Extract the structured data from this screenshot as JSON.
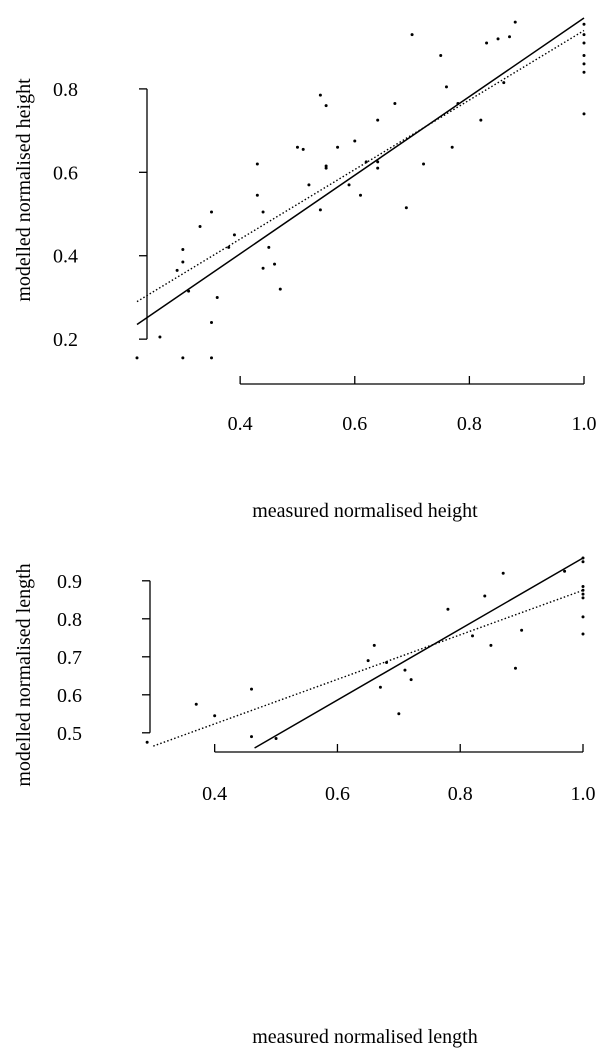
{
  "chart_data": [
    {
      "type": "scatter",
      "xlabel": "measured normalised height",
      "ylabel": "modelled normalised height",
      "xlim": [
        0.22,
        1.0
      ],
      "ylim": [
        0.15,
        0.97
      ],
      "xticks": [
        0.4,
        0.6,
        0.8,
        1.0
      ],
      "xtick_labels": [
        "0.4",
        "0.6",
        "0.8",
        "1.0"
      ],
      "yticks": [
        0.2,
        0.4,
        0.6,
        0.8
      ],
      "ytick_labels": [
        "0.2",
        "0.4",
        "0.6",
        "0.8"
      ],
      "x_axis_span": [
        0.4,
        1.0
      ],
      "y_axis_span": [
        0.2,
        0.8
      ],
      "points": [
        [
          0.22,
          0.155
        ],
        [
          0.26,
          0.205
        ],
        [
          0.3,
          0.155
        ],
        [
          0.35,
          0.155
        ],
        [
          0.29,
          0.365
        ],
        [
          0.3,
          0.415
        ],
        [
          0.3,
          0.385
        ],
        [
          0.31,
          0.315
        ],
        [
          0.33,
          0.47
        ],
        [
          0.35,
          0.505
        ],
        [
          0.35,
          0.24
        ],
        [
          0.36,
          0.3
        ],
        [
          0.38,
          0.42
        ],
        [
          0.39,
          0.45
        ],
        [
          0.43,
          0.62
        ],
        [
          0.43,
          0.545
        ],
        [
          0.44,
          0.37
        ],
        [
          0.44,
          0.505
        ],
        [
          0.45,
          0.42
        ],
        [
          0.46,
          0.38
        ],
        [
          0.47,
          0.32
        ],
        [
          0.5,
          0.66
        ],
        [
          0.51,
          0.655
        ],
        [
          0.52,
          0.57
        ],
        [
          0.54,
          0.785
        ],
        [
          0.54,
          0.51
        ],
        [
          0.55,
          0.615
        ],
        [
          0.55,
          0.61
        ],
        [
          0.55,
          0.76
        ],
        [
          0.57,
          0.66
        ],
        [
          0.59,
          0.57
        ],
        [
          0.6,
          0.675
        ],
        [
          0.61,
          0.545
        ],
        [
          0.62,
          0.625
        ],
        [
          0.64,
          0.625
        ],
        [
          0.64,
          0.725
        ],
        [
          0.64,
          0.61
        ],
        [
          0.67,
          0.765
        ],
        [
          0.69,
          0.515
        ],
        [
          0.7,
          0.93
        ],
        [
          0.72,
          0.62
        ],
        [
          0.75,
          0.88
        ],
        [
          0.76,
          0.805
        ],
        [
          0.77,
          0.66
        ],
        [
          0.78,
          0.765
        ],
        [
          0.82,
          0.725
        ],
        [
          0.83,
          0.91
        ],
        [
          0.85,
          0.92
        ],
        [
          0.86,
          0.815
        ],
        [
          0.87,
          0.925
        ],
        [
          0.88,
          0.96
        ],
        [
          1.0,
          0.955
        ],
        [
          1.0,
          0.93
        ],
        [
          1.0,
          0.91
        ],
        [
          1.0,
          0.88
        ],
        [
          1.0,
          0.86
        ],
        [
          1.0,
          0.84
        ],
        [
          1.0,
          0.74
        ]
      ],
      "fit_solid": [
        [
          0.22,
          0.235
        ],
        [
          1.0,
          0.97
        ]
      ],
      "fit_dotted": [
        [
          0.22,
          0.29
        ],
        [
          1.0,
          0.94
        ]
      ]
    },
    {
      "type": "scatter",
      "xlabel": "measured normalised length",
      "ylabel": "modelled normalised length",
      "xlim": [
        0.28,
        1.0
      ],
      "ylim": [
        0.46,
        0.96
      ],
      "xticks": [
        0.4,
        0.6,
        0.8,
        1.0
      ],
      "xtick_labels": [
        "0.4",
        "0.6",
        "0.8",
        "1.0"
      ],
      "yticks": [
        0.5,
        0.6,
        0.7,
        0.8,
        0.9
      ],
      "ytick_labels": [
        "0.5",
        "0.6",
        "0.7",
        "0.8",
        "0.9"
      ],
      "x_axis_span": [
        0.4,
        1.0
      ],
      "y_axis_span": [
        0.5,
        0.9
      ],
      "points": [
        [
          0.29,
          0.475
        ],
        [
          0.37,
          0.575
        ],
        [
          0.4,
          0.545
        ],
        [
          0.46,
          0.615
        ],
        [
          0.46,
          0.49
        ],
        [
          0.5,
          0.485
        ],
        [
          0.65,
          0.69
        ],
        [
          0.66,
          0.73
        ],
        [
          0.67,
          0.62
        ],
        [
          0.68,
          0.685
        ],
        [
          0.7,
          0.55
        ],
        [
          0.71,
          0.665
        ],
        [
          0.72,
          0.64
        ],
        [
          0.78,
          0.825
        ],
        [
          0.82,
          0.755
        ],
        [
          0.84,
          0.86
        ],
        [
          0.85,
          0.73
        ],
        [
          0.87,
          0.92
        ],
        [
          0.89,
          0.67
        ],
        [
          0.9,
          0.77
        ],
        [
          0.97,
          0.925
        ],
        [
          1.0,
          0.96
        ],
        [
          1.0,
          0.95
        ],
        [
          1.0,
          0.885
        ],
        [
          1.0,
          0.875
        ],
        [
          1.0,
          0.865
        ],
        [
          1.0,
          0.855
        ],
        [
          1.0,
          0.805
        ],
        [
          1.0,
          0.76
        ]
      ],
      "fit_solid": [
        [
          0.465,
          0.46
        ],
        [
          1.0,
          0.96
        ]
      ],
      "fit_dotted": [
        [
          0.3,
          0.465
        ],
        [
          1.0,
          0.875
        ]
      ]
    }
  ]
}
